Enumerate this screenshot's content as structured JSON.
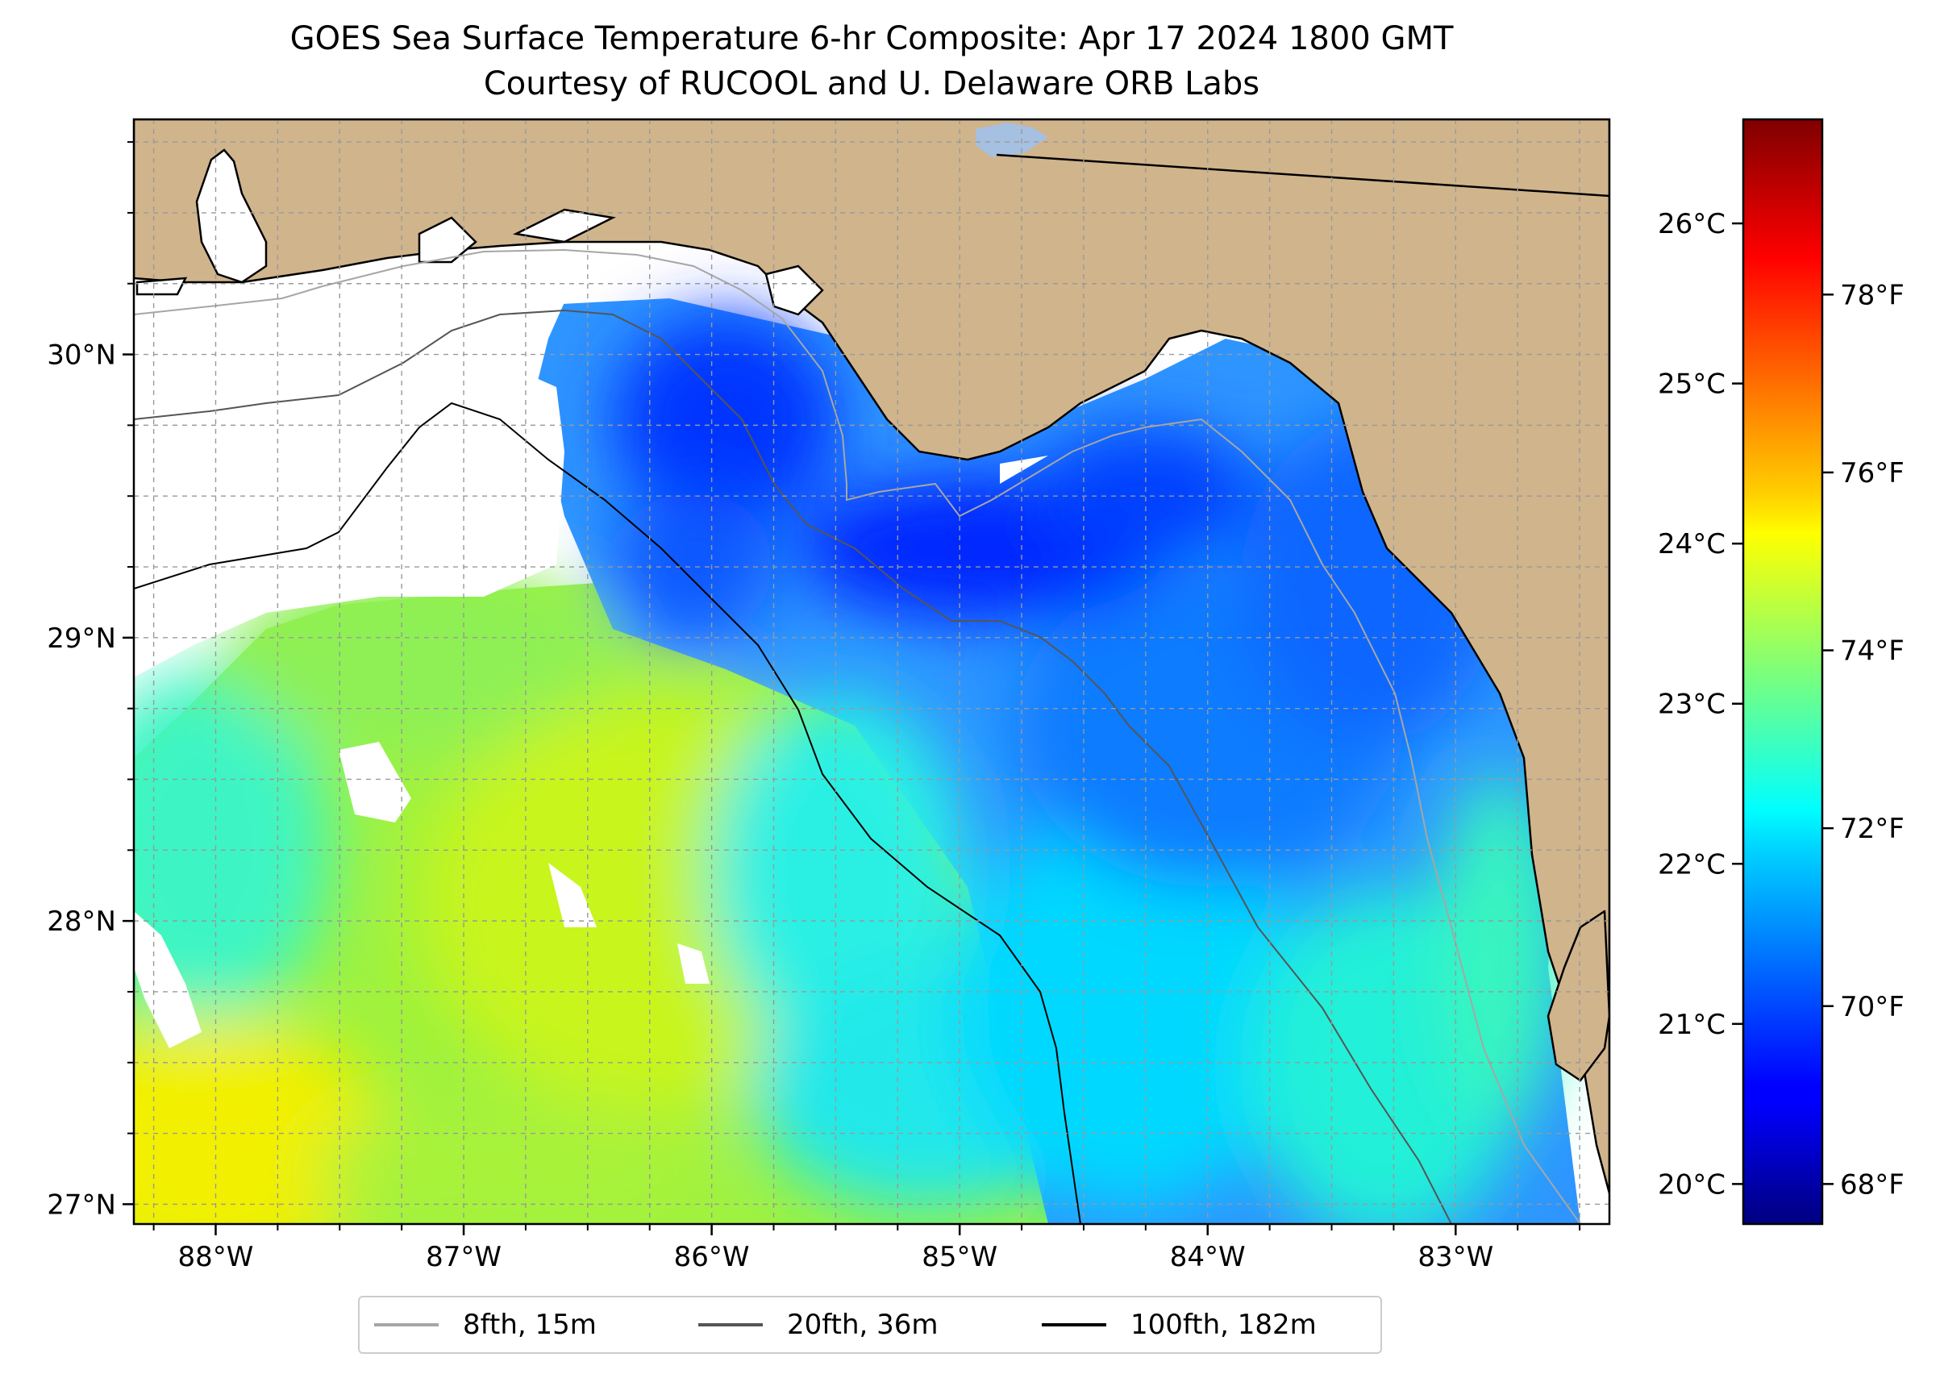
{
  "title": {
    "line1": "GOES Sea Surface Temperature 6-hr Composite: Apr 17 2024 1800 GMT",
    "line2": "Courtesy of RUCOOL and U. Delaware ORB Labs"
  },
  "map": {
    "lon_range": [
      -88.33,
      -82.38
    ],
    "lat_range": [
      26.93,
      30.83
    ],
    "lon_ticks": [
      {
        "value": -88,
        "label": "88°W"
      },
      {
        "value": -87,
        "label": "87°W"
      },
      {
        "value": -86,
        "label": "86°W"
      },
      {
        "value": -85,
        "label": "85°W"
      },
      {
        "value": -84,
        "label": "84°W"
      },
      {
        "value": -83,
        "label": "83°W"
      }
    ],
    "lat_ticks": [
      {
        "value": 30,
        "label": "30°N"
      },
      {
        "value": 29,
        "label": "29°N"
      },
      {
        "value": 28,
        "label": "28°N"
      },
      {
        "value": 27,
        "label": "27°N"
      }
    ],
    "gridlines": true,
    "land_color": "#d0b48c",
    "no_data_color": "#ffffff"
  },
  "colorbar": {
    "colormap": "jet",
    "range_c": [
      19.75,
      26.65
    ],
    "celsius_ticks": [
      {
        "value": 20,
        "label": "20°C"
      },
      {
        "value": 21,
        "label": "21°C"
      },
      {
        "value": 22,
        "label": "22°C"
      },
      {
        "value": 23,
        "label": "23°C"
      },
      {
        "value": 24,
        "label": "24°C"
      },
      {
        "value": 25,
        "label": "25°C"
      },
      {
        "value": 26,
        "label": "26°C"
      }
    ],
    "fahrenheit_ticks": [
      {
        "value": 68,
        "label": "68°F"
      },
      {
        "value": 70,
        "label": "70°F"
      },
      {
        "value": 72,
        "label": "72°F"
      },
      {
        "value": 74,
        "label": "74°F"
      },
      {
        "value": 76,
        "label": "76°F"
      },
      {
        "value": 78,
        "label": "78°F"
      }
    ]
  },
  "legend": {
    "entries": [
      {
        "label": "8fth, 15m",
        "color": "#a6a6a6"
      },
      {
        "label": "20fth, 36m",
        "color": "#555555"
      },
      {
        "label": "100fth, 182m",
        "color": "#000000"
      }
    ],
    "placement": "bottom-center"
  }
}
